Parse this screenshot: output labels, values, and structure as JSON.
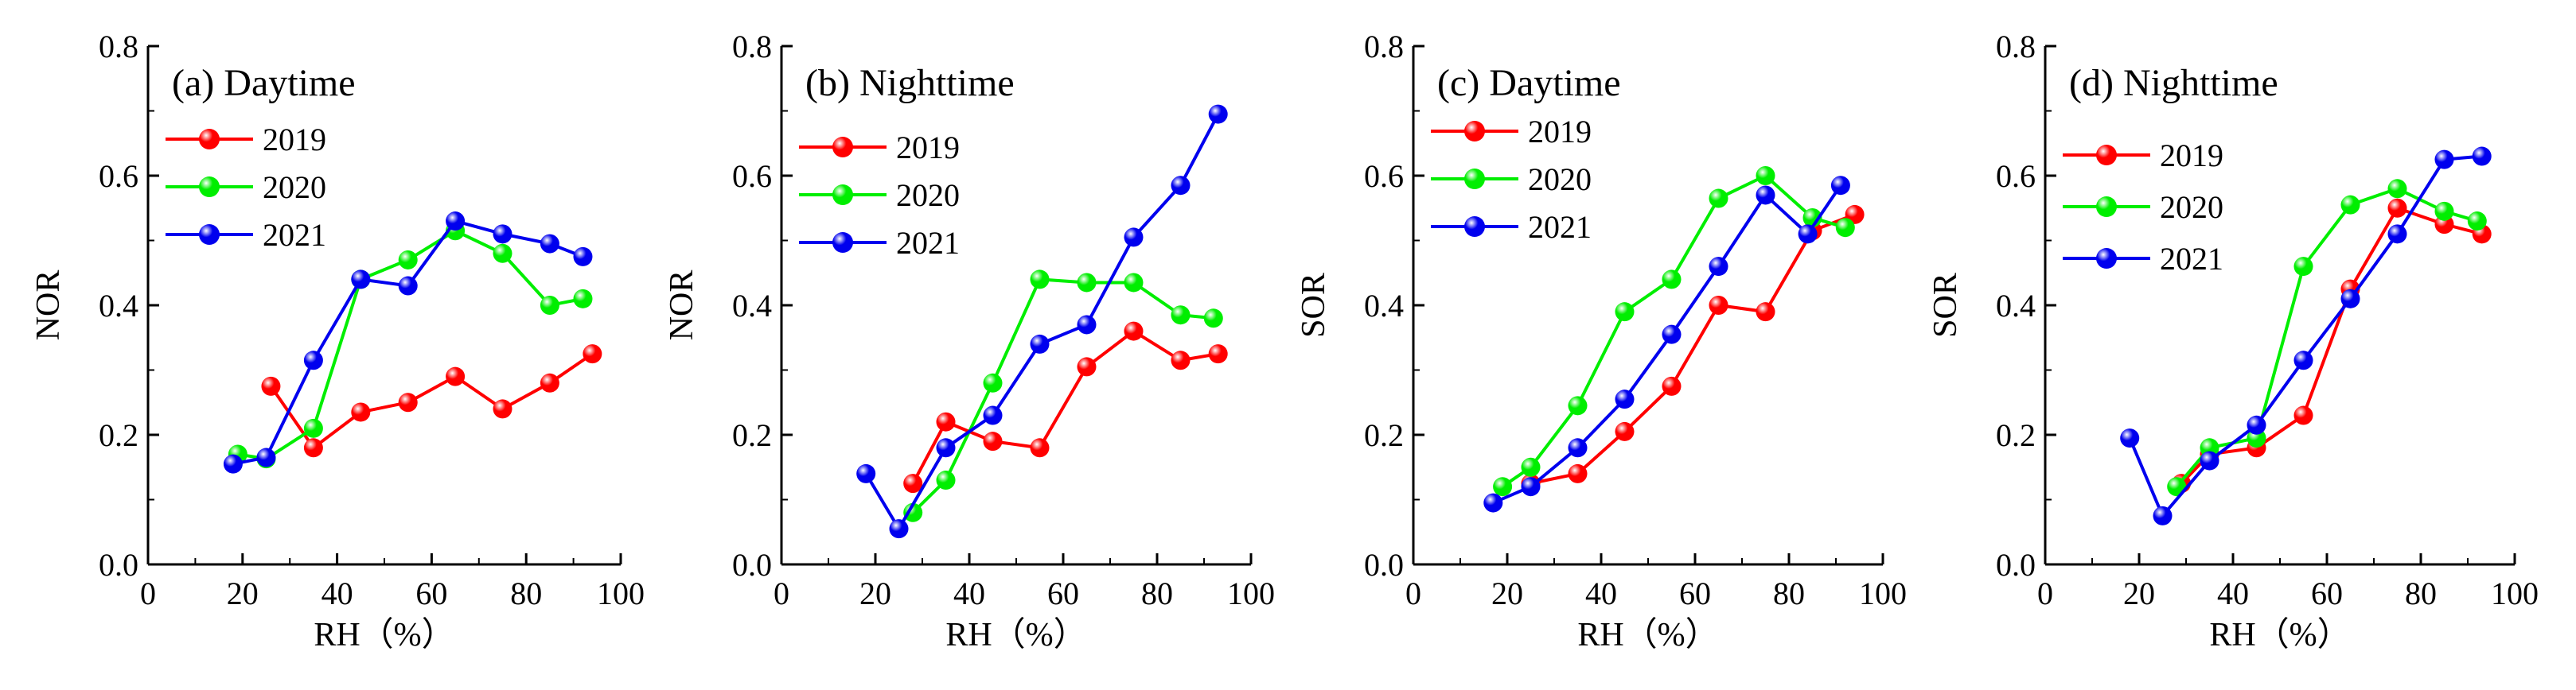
{
  "series_colors": {
    "2019": "#ff0000",
    "2020": "#00ee00",
    "2021": "#0000ee"
  },
  "chart_data": [
    {
      "type": "line",
      "title": "(a) Daytime",
      "xlabel": "RH（%）",
      "ylabel": "NOR",
      "xlim": [
        0,
        100
      ],
      "ylim": [
        0,
        0.8
      ],
      "xticks": [
        "0",
        "20",
        "40",
        "60",
        "80",
        "100"
      ],
      "yticks": [
        "0.0",
        "0.2",
        "0.4",
        "0.6",
        "0.8"
      ],
      "grid": false,
      "legend": "upper-left",
      "series": [
        {
          "name": "2019",
          "x": [
            26,
            35,
            45,
            55,
            65,
            75,
            85,
            94
          ],
          "y": [
            0.275,
            0.18,
            0.235,
            0.25,
            0.29,
            0.24,
            0.28,
            0.325
          ]
        },
        {
          "name": "2020",
          "x": [
            19,
            25,
            35,
            45,
            55,
            65,
            75,
            85,
            92
          ],
          "y": [
            0.17,
            0.163,
            0.21,
            0.44,
            0.47,
            0.515,
            0.48,
            0.4,
            0.41
          ]
        },
        {
          "name": "2021",
          "x": [
            18,
            25,
            35,
            45,
            55,
            65,
            75,
            85,
            92
          ],
          "y": [
            0.155,
            0.165,
            0.315,
            0.44,
            0.43,
            0.53,
            0.51,
            0.495,
            0.475
          ]
        }
      ]
    },
    {
      "type": "line",
      "title": "(b) Nighttime",
      "xlabel": "RH（%）",
      "ylabel": "NOR",
      "xlim": [
        0,
        100
      ],
      "ylim": [
        0,
        0.8
      ],
      "xticks": [
        "0",
        "20",
        "40",
        "60",
        "80",
        "100"
      ],
      "yticks": [
        "0.0",
        "0.2",
        "0.4",
        "0.6",
        "0.8"
      ],
      "grid": false,
      "legend": "upper-left",
      "series": [
        {
          "name": "2019",
          "x": [
            28,
            35,
            45,
            55,
            65,
            75,
            85,
            93
          ],
          "y": [
            0.125,
            0.22,
            0.19,
            0.18,
            0.305,
            0.36,
            0.315,
            0.325
          ]
        },
        {
          "name": "2020",
          "x": [
            28,
            35,
            45,
            55,
            65,
            75,
            85,
            92
          ],
          "y": [
            0.08,
            0.13,
            0.28,
            0.44,
            0.435,
            0.435,
            0.385,
            0.38
          ]
        },
        {
          "name": "2021",
          "x": [
            18,
            25,
            35,
            45,
            55,
            65,
            75,
            85,
            93
          ],
          "y": [
            0.14,
            0.055,
            0.18,
            0.23,
            0.34,
            0.37,
            0.505,
            0.585,
            0.695
          ]
        }
      ]
    },
    {
      "type": "line",
      "title": "(c) Daytime",
      "xlabel": "RH（%）",
      "ylabel": "SOR",
      "xlim": [
        0,
        100
      ],
      "ylim": [
        0,
        0.8
      ],
      "xticks": [
        "0",
        "20",
        "40",
        "60",
        "80",
        "100"
      ],
      "yticks": [
        "0.0",
        "0.2",
        "0.4",
        "0.6",
        "0.8"
      ],
      "grid": false,
      "legend": "upper-left",
      "series": [
        {
          "name": "2019",
          "x": [
            25,
            35,
            45,
            55,
            65,
            75,
            85,
            94
          ],
          "y": [
            0.125,
            0.14,
            0.205,
            0.275,
            0.4,
            0.39,
            0.515,
            0.54
          ]
        },
        {
          "name": "2020",
          "x": [
            19,
            25,
            35,
            45,
            55,
            65,
            75,
            85,
            92
          ],
          "y": [
            0.12,
            0.15,
            0.245,
            0.39,
            0.44,
            0.565,
            0.6,
            0.535,
            0.52
          ]
        },
        {
          "name": "2021",
          "x": [
            17,
            25,
            35,
            45,
            55,
            65,
            75,
            84,
            91
          ],
          "y": [
            0.095,
            0.12,
            0.18,
            0.255,
            0.355,
            0.46,
            0.57,
            0.51,
            0.585
          ]
        }
      ]
    },
    {
      "type": "line",
      "title": "(d) Nighttime",
      "xlabel": "RH（%）",
      "ylabel": "SOR",
      "xlim": [
        0,
        100
      ],
      "ylim": [
        0,
        0.8
      ],
      "xticks": [
        "0",
        "20",
        "40",
        "60",
        "80",
        "100"
      ],
      "yticks": [
        "0.0",
        "0.2",
        "0.4",
        "0.6",
        "0.8"
      ],
      "grid": false,
      "legend": "upper-left",
      "series": [
        {
          "name": "2019",
          "x": [
            29,
            35,
            45,
            55,
            65,
            75,
            85,
            93
          ],
          "y": [
            0.125,
            0.17,
            0.18,
            0.23,
            0.425,
            0.55,
            0.525,
            0.51
          ]
        },
        {
          "name": "2020",
          "x": [
            28,
            35,
            45,
            55,
            65,
            75,
            85,
            92
          ],
          "y": [
            0.12,
            0.18,
            0.195,
            0.46,
            0.555,
            0.58,
            0.545,
            0.53
          ]
        },
        {
          "name": "2021",
          "x": [
            18,
            25,
            35,
            45,
            55,
            65,
            75,
            85,
            93
          ],
          "y": [
            0.195,
            0.075,
            0.16,
            0.215,
            0.315,
            0.41,
            0.51,
            0.625,
            0.63
          ]
        }
      ]
    }
  ]
}
